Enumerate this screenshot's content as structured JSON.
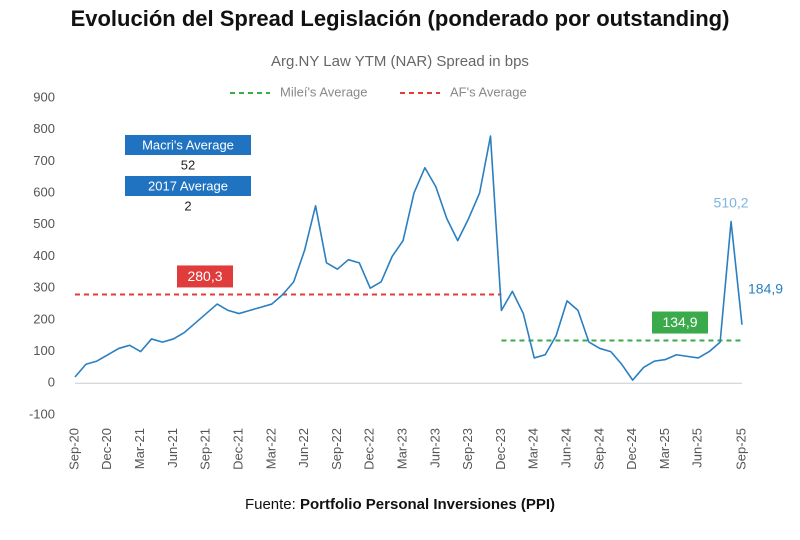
{
  "chart_data": {
    "type": "line",
    "title": "Evolución del Spread Legislación (ponderado por outstanding)",
    "subtitle": "Arg.NY Law YTM (NAR) Spread in bps",
    "source_prefix": "Fuente:",
    "source": "Portfolio Personal Inversiones (PPI)",
    "categories": [
      "Sep-20",
      null,
      null,
      "Dec-20",
      null,
      null,
      "Mar-21",
      null,
      null,
      "Jun-21",
      null,
      null,
      "Sep-21",
      null,
      null,
      "Dec-21",
      null,
      null,
      "Mar-22",
      null,
      null,
      "Jun-22",
      null,
      null,
      "Sep-22",
      null,
      null,
      "Dec-22",
      null,
      null,
      "Mar-23",
      null,
      null,
      "Jun-23",
      null,
      null,
      "Sep-23",
      null,
      null,
      "Dec-23",
      null,
      null,
      "Mar-24",
      null,
      null,
      "Jun-24",
      null,
      null,
      "Sep-24",
      null,
      null,
      "Dec-24",
      null,
      null,
      "Mar-25",
      null,
      null,
      "Jun-25",
      null,
      null,
      null,
      "Sep-25"
    ],
    "series": [
      {
        "name": "Arg.NY Law YTM (NAR) Spread",
        "color": "#2a7fc1",
        "values": [
          20,
          60,
          70,
          90,
          110,
          120,
          100,
          140,
          130,
          140,
          160,
          190,
          220,
          250,
          230,
          220,
          230,
          240,
          250,
          280,
          320,
          420,
          560,
          380,
          360,
          390,
          380,
          300,
          320,
          400,
          450,
          600,
          680,
          620,
          520,
          450,
          520,
          600,
          780,
          230,
          290,
          220,
          80,
          90,
          150,
          260,
          230,
          130,
          110,
          100,
          60,
          10,
          50,
          70,
          75,
          90,
          85,
          80,
          100,
          130,
          510.2,
          184.9
        ],
        "value_labels": [
          null,
          null,
          null,
          null,
          null,
          null,
          null,
          null,
          null,
          null,
          null,
          null,
          null,
          null,
          null,
          null,
          null,
          null,
          null,
          null,
          null,
          null,
          null,
          null,
          null,
          null,
          null,
          null,
          null,
          null,
          null,
          null,
          null,
          null,
          null,
          null,
          null,
          null,
          null,
          null,
          null,
          null,
          null,
          null,
          null,
          null,
          null,
          null,
          null,
          null,
          null,
          null,
          null,
          null,
          null,
          null,
          null,
          null,
          null,
          null,
          "510,2",
          "184,9"
        ]
      }
    ],
    "reference_lines": [
      {
        "name": "Mileí's Average",
        "color": "#3aaa4a",
        "value": 134.9,
        "value_label": "134,9",
        "from": "Dec-23",
        "to": "Sep-25"
      },
      {
        "name": "AF's Average",
        "color": "#e03c3c",
        "value": 280.3,
        "value_label": "280,3",
        "from": "Sep-20",
        "to": "Dec-23"
      }
    ],
    "annotations": [
      {
        "label": "Macri's Average",
        "value": 52
      },
      {
        "label": "2017 Average",
        "value": 2
      }
    ],
    "ylim": [
      -100,
      900
    ],
    "yticks": [
      -100,
      0,
      100,
      200,
      300,
      400,
      500,
      600,
      700,
      800,
      900
    ],
    "zero_line": true,
    "grid": false
  }
}
